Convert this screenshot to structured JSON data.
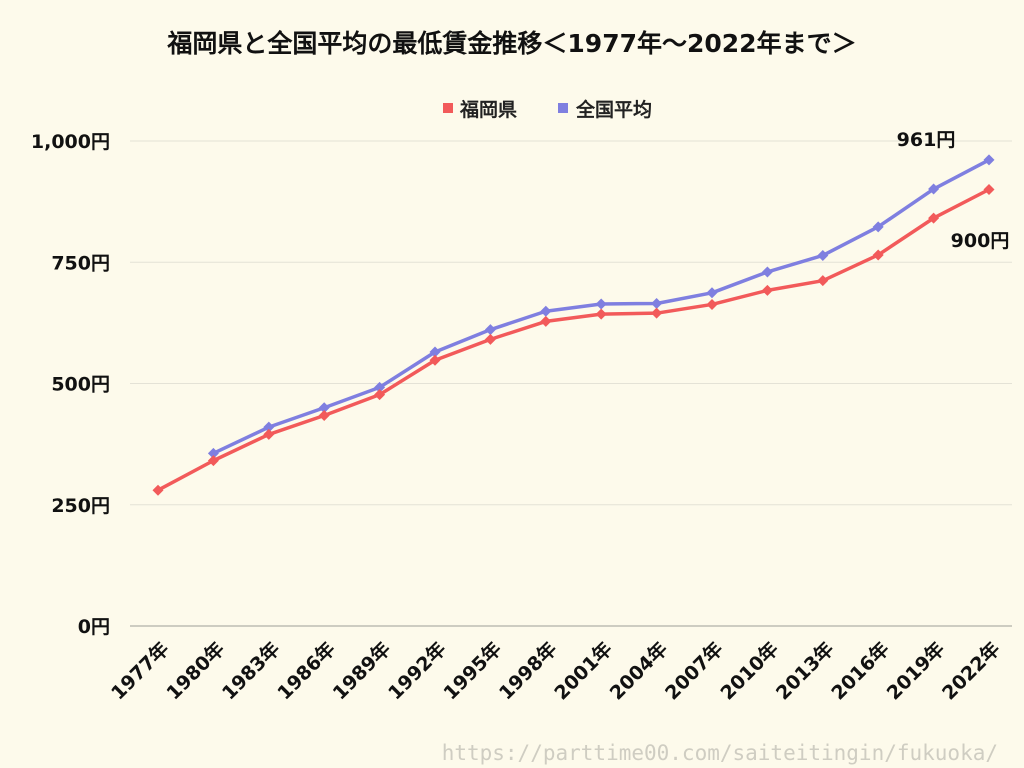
{
  "chart_data": {
    "type": "line",
    "title": "福岡県と全国平均の最低賃金推移＜1977年〜2022年まで＞",
    "categories": [
      "1977年",
      "1980年",
      "1983年",
      "1986年",
      "1989年",
      "1992年",
      "1995年",
      "1998年",
      "2001年",
      "2004年",
      "2007年",
      "2010年",
      "2013年",
      "2016年",
      "2019年",
      "2022年"
    ],
    "series": [
      {
        "name": "福岡県",
        "color": "#f25a5a",
        "values": [
          280,
          341,
          395,
          434,
          477,
          548,
          591,
          628,
          643,
          645,
          663,
          692,
          712,
          765,
          841,
          900
        ]
      },
      {
        "name": "全国平均",
        "color": "#7f7fe0",
        "values": [
          null,
          356,
          410,
          450,
          492,
          565,
          611,
          649,
          664,
          665,
          687,
          730,
          764,
          823,
          901,
          961
        ]
      }
    ],
    "yticks": [
      "0円",
      "250円",
      "500円",
      "750円",
      "1,000円"
    ],
    "ylim": [
      0,
      1000
    ],
    "legend_position": "top-center",
    "grid": true,
    "annotations": [
      "961円",
      "900円"
    ]
  },
  "footer_url": "https://parttime00.com/saiteitingin/fukuoka/"
}
